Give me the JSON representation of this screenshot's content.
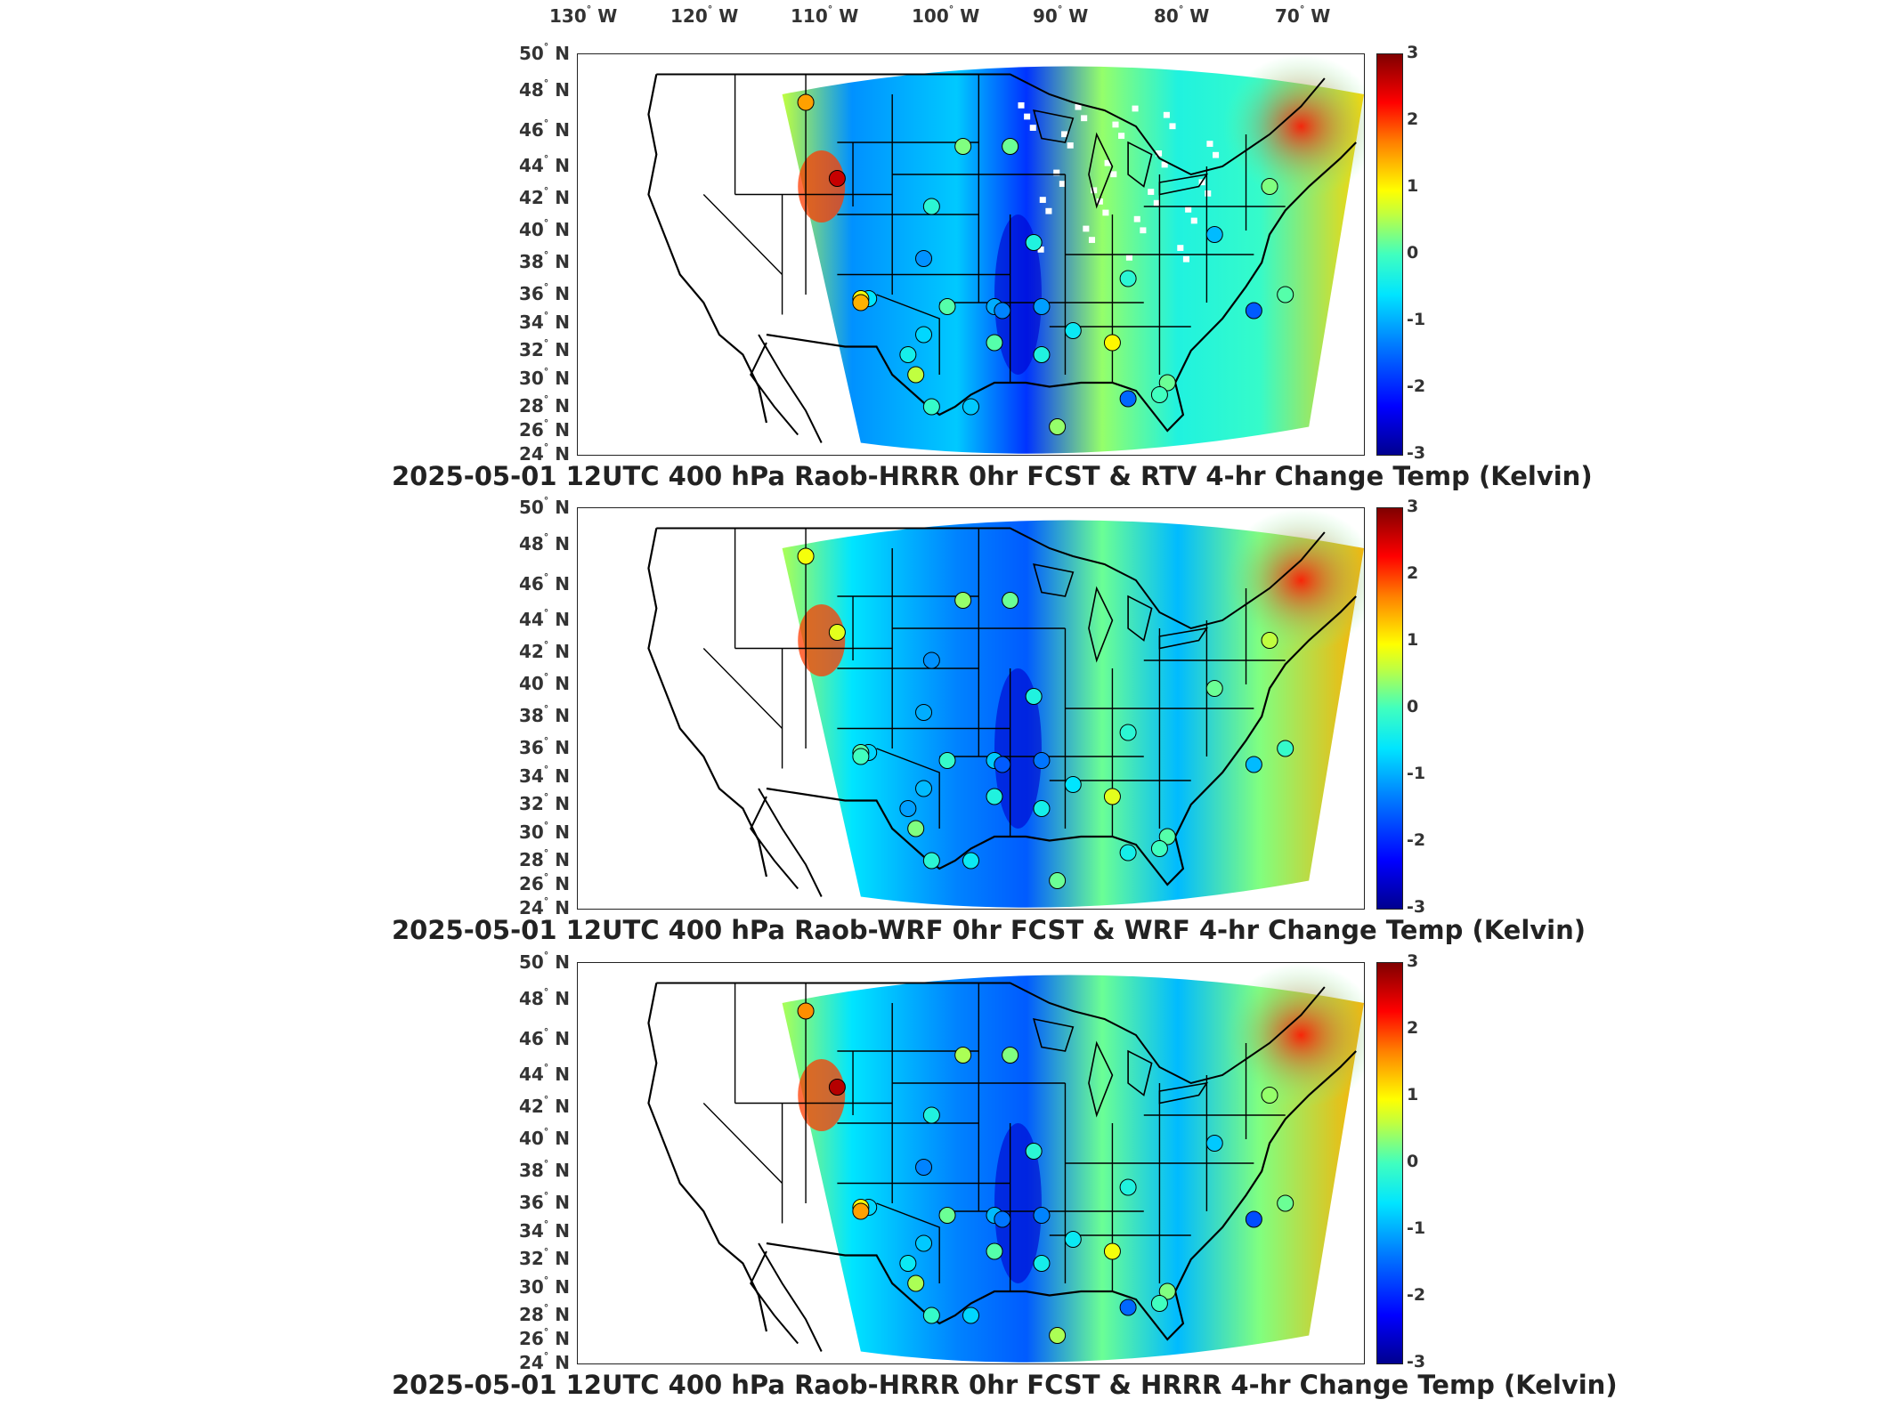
{
  "longitude_labels": [
    "130",
    "120",
    "110",
    "100",
    "90",
    "80",
    "70"
  ],
  "longitude_suffix": "W",
  "latitude_labels": [
    "50",
    "48",
    "46",
    "44",
    "42",
    "40",
    "38",
    "36",
    "34",
    "32",
    "30",
    "28",
    "26",
    "24"
  ],
  "latitude_suffix": "N",
  "degree_symbol": "°",
  "colorbar": {
    "ticks": [
      "3",
      "2",
      "1",
      "0",
      "-1",
      "-2",
      "-3"
    ],
    "range": [
      -3,
      3
    ],
    "colormap": "jet"
  },
  "panels": [
    {
      "title": "2025-05-01 12UTC 400 hPa Raob-HRRR 0hr FCST & RTV 4-hr Change Temp (Kelvin)",
      "field_style": "noisy",
      "station_values": [
        1.5,
        2.6,
        0.3,
        -0.2,
        0.2,
        -0.3,
        -1.2,
        0.1,
        -1.0,
        -0.6,
        0.9,
        1.4,
        -0.7,
        -0.4,
        0.6,
        -0.1,
        -0.8,
        -1.3,
        0.1,
        -1.1,
        -0.3,
        -0.5,
        0.4,
        -0.2,
        1.0,
        -1.5,
        0.2,
        0.0,
        -0.9,
        0.3,
        0.1,
        -1.6
      ]
    },
    {
      "title": "2025-05-01 12UTC 400 hPa Raob-WRF 0hr FCST & WRF 4-hr Change Temp (Kelvin)",
      "field_style": "smooth",
      "station_values": [
        0.9,
        0.8,
        0.4,
        -1.2,
        0.2,
        -0.3,
        -1.0,
        -0.1,
        -0.8,
        -0.7,
        0.1,
        0.0,
        -0.9,
        -1.1,
        0.3,
        -0.2,
        -0.5,
        -1.6,
        -0.3,
        -1.4,
        -0.4,
        -0.6,
        0.2,
        -0.2,
        0.8,
        -0.4,
        0.1,
        0.0,
        0.2,
        0.6,
        -0.1,
        -0.9
      ]
    },
    {
      "title": "2025-05-01 12UTC 400 hPa Raob-HRRR 0hr FCST & HRRR 4-hr Change Temp (Kelvin)",
      "field_style": "smooth",
      "station_values": [
        1.6,
        2.7,
        0.5,
        -0.3,
        0.3,
        -0.2,
        -1.3,
        0.2,
        -0.9,
        -0.7,
        0.9,
        1.5,
        -0.8,
        -0.5,
        0.5,
        -0.1,
        -0.7,
        -1.4,
        0.1,
        -1.3,
        -0.4,
        -0.5,
        0.5,
        -0.3,
        0.9,
        -1.5,
        0.3,
        0.0,
        -0.8,
        0.4,
        0.2,
        -1.7
      ]
    }
  ]
}
